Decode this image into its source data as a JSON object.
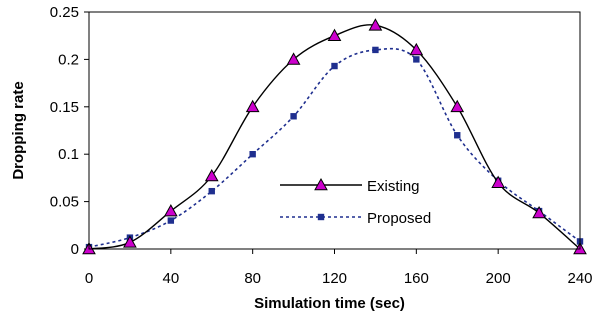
{
  "chart_data": {
    "type": "line",
    "title": "",
    "xlabel": "Simulation time (sec)",
    "ylabel": "Dropping rate",
    "xlim": [
      0,
      240
    ],
    "ylim": [
      0,
      0.25
    ],
    "xticks": [
      0,
      40,
      80,
      120,
      160,
      200,
      240
    ],
    "yticks": [
      0,
      0.05,
      0.1,
      0.15,
      0.2,
      0.25
    ],
    "xtick_labels": [
      "0",
      "40",
      "80",
      "120",
      "160",
      "200",
      "240"
    ],
    "ytick_labels": [
      "0",
      "0.05",
      "0.1",
      "0.15",
      "0.2",
      "0.25"
    ],
    "grid": false,
    "legend_position": "center-right",
    "series": [
      {
        "name": "Existing",
        "color": "#000000",
        "marker_color": "#cc00cc",
        "marker": "triangle",
        "line_style": "solid",
        "x": [
          0,
          20,
          40,
          60,
          80,
          100,
          120,
          140,
          160,
          180,
          200,
          220,
          240
        ],
        "y": [
          0,
          0.007,
          0.04,
          0.077,
          0.15,
          0.2,
          0.225,
          0.236,
          0.21,
          0.15,
          0.07,
          0.038,
          0
        ]
      },
      {
        "name": "Proposed",
        "color": "#1f2f8f",
        "marker_color": "#1f2f8f",
        "marker": "square",
        "line_style": "dotted",
        "x": [
          0,
          20,
          40,
          60,
          80,
          100,
          120,
          140,
          160,
          180,
          200,
          220,
          240
        ],
        "y": [
          0.002,
          0.012,
          0.03,
          0.061,
          0.1,
          0.14,
          0.193,
          0.21,
          0.2,
          0.12,
          0.072,
          0.04,
          0.008
        ]
      }
    ]
  }
}
